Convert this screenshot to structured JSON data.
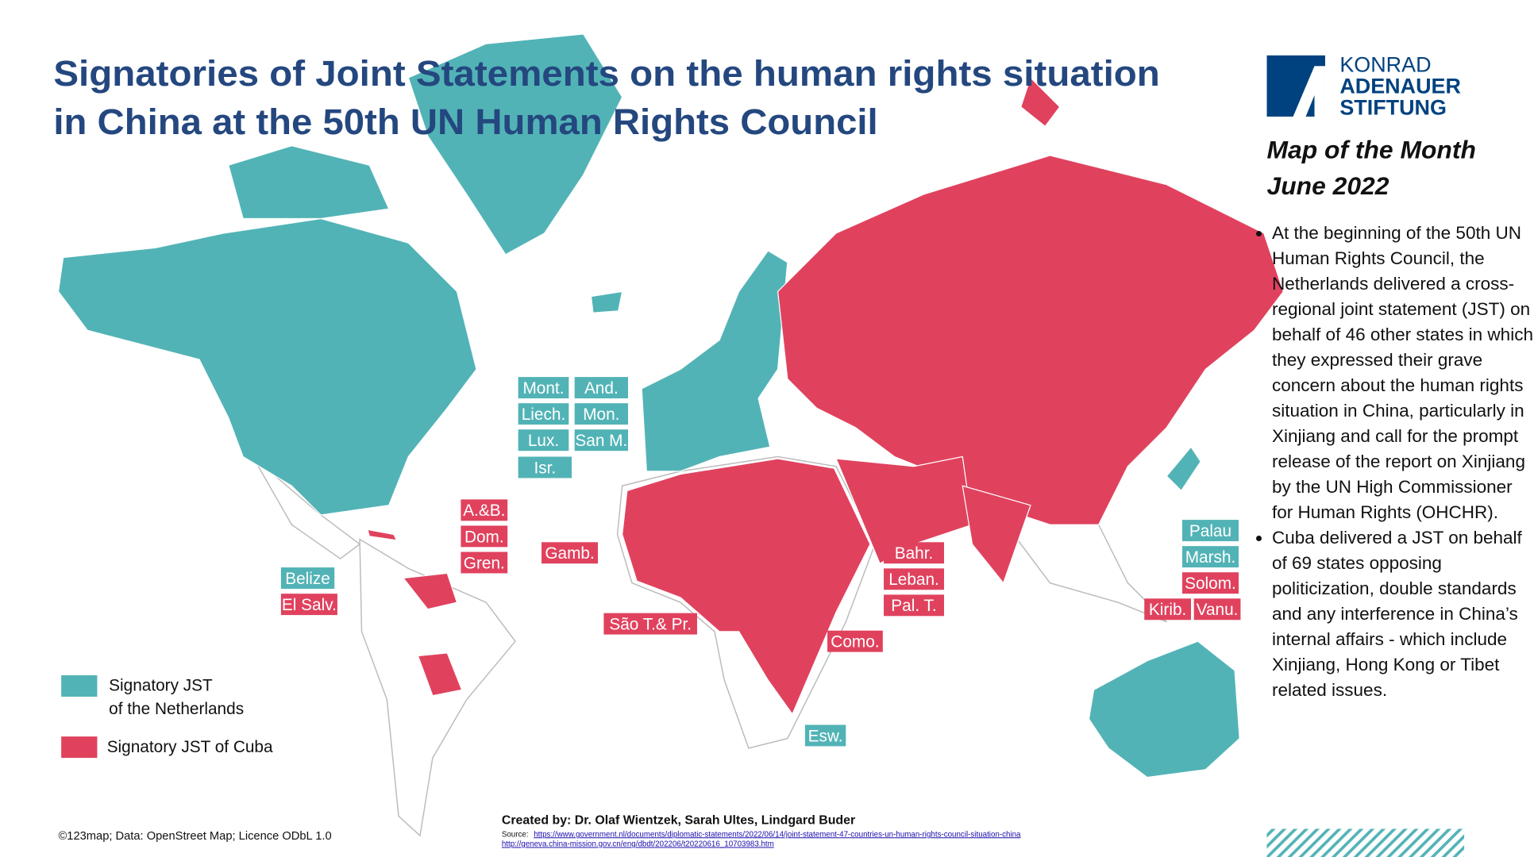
{
  "header": {
    "title": [
      "Signatories of Joint Statements on the human rights situation",
      "in China at the 50th UN Human Rights Council"
    ]
  },
  "logo": {
    "lines": [
      "KONRAD",
      "ADENAUER",
      "STIFTUNG"
    ]
  },
  "sidebar": {
    "heading": [
      "Map of the Month",
      "June 2022"
    ],
    "bullets": [
      "At the beginning of the 50th UN Human Rights Council, the Netherlands delivered a cross-regional joint statement (JST) on behalf of 46 other states in which they expressed their grave concern about the human rights situation in China, particularly in Xinjiang and call for the prompt release of the report on Xinjiang by the UN High Commissioner for Human Rights (OHCHR).",
      "Cuba delivered a JST on behalf of 69 states opposing politicization, double standards and any interference in China’s internal affairs - which include Xinjiang, Hong Kong or Tibet related issues."
    ]
  },
  "legend": [
    {
      "label": [
        "Signatory JST",
        "of the Netherlands"
      ],
      "color": "#52b3b6"
    },
    {
      "label": [
        "Signatory JST of Cuba"
      ],
      "color": "#e0425e"
    }
  ],
  "labels": [
    {
      "text": "Mont.",
      "color": "#52b3b6"
    },
    {
      "text": "And.",
      "color": "#52b3b6"
    },
    {
      "text": "Liech.",
      "color": "#52b3b6"
    },
    {
      "text": "Mon.",
      "color": "#52b3b6"
    },
    {
      "text": "Lux.",
      "color": "#52b3b6"
    },
    {
      "text": "San M.",
      "color": "#52b3b6"
    },
    {
      "text": "Isr.",
      "color": "#52b3b6"
    },
    {
      "text": "A.&B.",
      "color": "#e0425e"
    },
    {
      "text": "Dom.",
      "color": "#e0425e"
    },
    {
      "text": "Gren.",
      "color": "#e0425e"
    },
    {
      "text": "Gamb.",
      "color": "#e0425e"
    },
    {
      "text": "Belize",
      "color": "#52b3b6"
    },
    {
      "text": "El Salv.",
      "color": "#e0425e"
    },
    {
      "text": "São T.& Pr.",
      "color": "#e0425e"
    },
    {
      "text": "Bahr.",
      "color": "#e0425e"
    },
    {
      "text": "Leban.",
      "color": "#e0425e"
    },
    {
      "text": "Pal. T.",
      "color": "#e0425e"
    },
    {
      "text": "Como.",
      "color": "#e0425e"
    },
    {
      "text": "Esw.",
      "color": "#52b3b6"
    },
    {
      "text": "Palau",
      "color": "#52b3b6"
    },
    {
      "text": "Marsh.",
      "color": "#52b3b6"
    },
    {
      "text": "Solom.",
      "color": "#e0425e"
    },
    {
      "text": "Kirib.",
      "color": "#e0425e"
    },
    {
      "text": "Vanu.",
      "color": "#e0425e"
    }
  ],
  "footer": {
    "credit": "©123map; Data: OpenStreet Map; Licence ODbL 1.0",
    "created_by": "Created by: Dr. Olaf Wientzek, Sarah Ultes, Lindgard Buder",
    "source_label": "Source:",
    "sources": [
      "https://www.government.nl/documents/diplomatic-statements/2022/06/14/joint-statement-47-countries-un-human-rights-council-situation-china",
      "http://geneva.china-mission.gov.cn/eng/dbdt/202206/t20220616_10703983.htm"
    ]
  }
}
